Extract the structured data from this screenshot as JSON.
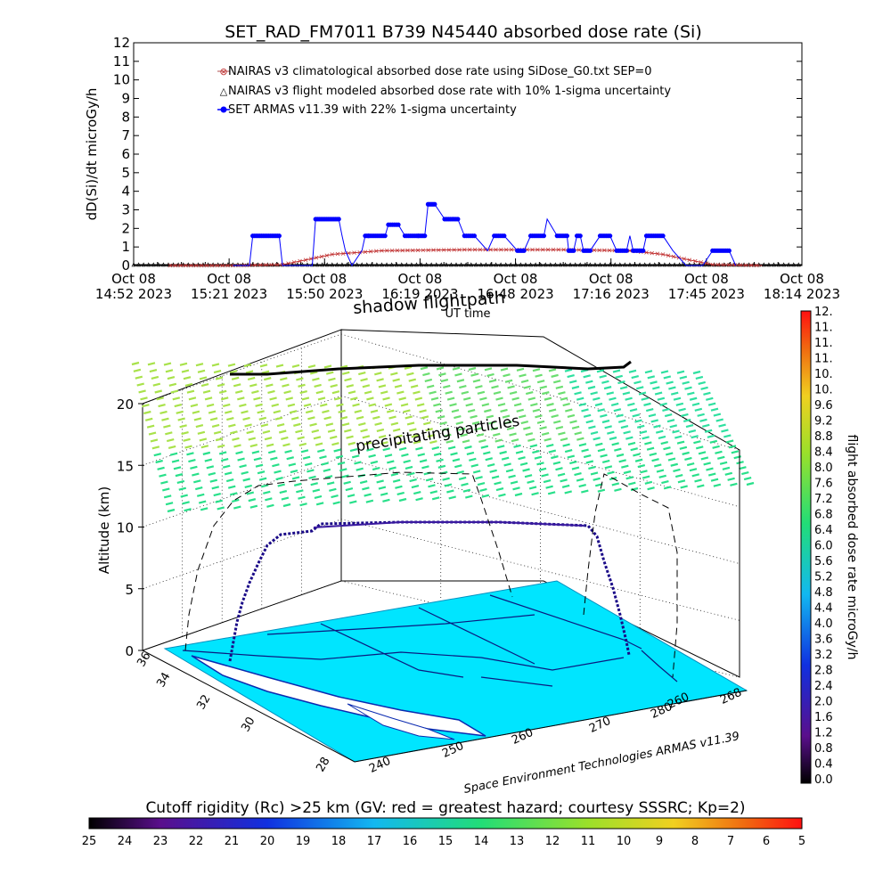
{
  "chart_data": [
    {
      "type": "line",
      "title": "SET_RAD_FM7011  B739 N45440 absorbed dose rate (Si)",
      "ylabel": "dD(Si)/dt microGy/h",
      "xlabel": "UT time",
      "ylim": [
        0,
        12
      ],
      "yticks": [
        "0",
        "1",
        "2",
        "3",
        "4",
        "5",
        "6",
        "7",
        "8",
        "9",
        "10",
        "11",
        "12"
      ],
      "xticks": [
        {
          "date": "Oct 08",
          "time": "14:52 2023"
        },
        {
          "date": "Oct 08",
          "time": "15:21 2023"
        },
        {
          "date": "Oct 08",
          "time": "15:50 2023"
        },
        {
          "date": "Oct 08",
          "time": "16:19 2023"
        },
        {
          "date": "Oct 08",
          "time": "16:48 2023"
        },
        {
          "date": "Oct 08",
          "time": "17:16 2023"
        },
        {
          "date": "Oct 08",
          "time": "17:45 2023"
        },
        {
          "date": "Oct 08",
          "time": "18:14 2023"
        }
      ],
      "xrange_min": [
        0,
        202
      ],
      "series": [
        {
          "name": "NAIRAS v3 climatological absorbed dose rate using SiDose_G0.txt SEP=0",
          "color": "#c03030",
          "x": [
            11,
            30,
            45,
            52,
            60,
            75,
            100,
            130,
            150,
            160,
            168,
            175,
            190
          ],
          "y": [
            0.0,
            0.0,
            0.05,
            0.3,
            0.6,
            0.8,
            0.85,
            0.85,
            0.8,
            0.6,
            0.3,
            0.05,
            0.0
          ]
        },
        {
          "name": "NAIRAS v3 flight modeled absorbed dose rate with 10% 1-sigma uncertainty",
          "color": "#000000",
          "x": [
            0,
            202
          ],
          "y": [
            0.0,
            0.0
          ]
        },
        {
          "name": "SET ARMAS v11.39 with 22% 1-sigma uncertainty",
          "color": "#0000ff",
          "x": [
            30,
            35,
            36,
            44,
            45,
            48,
            50,
            54,
            55,
            62,
            63,
            64,
            66,
            69,
            70,
            71,
            76,
            77,
            80,
            82,
            86,
            88,
            89,
            91,
            94,
            98,
            100,
            103,
            107,
            109,
            112,
            116,
            118,
            120,
            124,
            125,
            128,
            131,
            131.5,
            133,
            134,
            135,
            136,
            138,
            141,
            144,
            146,
            149,
            150,
            151,
            154,
            155,
            160,
            163,
            167,
            168,
            172,
            175,
            180,
            182
          ],
          "y": [
            0,
            0,
            1.6,
            1.6,
            0,
            0,
            0,
            0,
            2.5,
            2.5,
            1.6,
            0.8,
            0,
            0.8,
            1.6,
            1.6,
            1.6,
            2.2,
            2.2,
            1.6,
            1.6,
            1.6,
            3.3,
            3.3,
            2.5,
            2.5,
            1.6,
            1.6,
            0.8,
            1.6,
            1.6,
            0.8,
            0.8,
            1.6,
            1.6,
            2.5,
            1.6,
            1.6,
            0.8,
            0.8,
            1.6,
            1.6,
            0.8,
            0.8,
            1.6,
            1.6,
            0.8,
            0.8,
            1.6,
            0.8,
            0.8,
            1.6,
            1.6,
            0.8,
            0,
            0,
            0,
            0.8,
            0.8,
            0
          ]
        }
      ]
    },
    {
      "type": "3d-flight-track",
      "zlabel": "Altitude (km)",
      "zticks": [
        "0",
        "5",
        "10",
        "15",
        "20"
      ],
      "latitude_ticks": [
        "36",
        "34",
        "32",
        "30",
        "28"
      ],
      "longitude_ticks": [
        "240",
        "250",
        "260",
        "270",
        "280",
        "260",
        "268"
      ],
      "annotations": [
        "precipitating particles",
        "shadow flightpath"
      ],
      "credit": "Space Environment Technologies ARMAS v11.39"
    },
    {
      "type": "colorbar",
      "label": "flight absorbed dose rate microGy/h",
      "ticks": [
        "0.0",
        "0.4",
        "0.8",
        "1.2",
        "1.6",
        "2.0",
        "2.4",
        "2.8",
        "3.2",
        "3.6",
        "4.0",
        "4.4",
        "4.8",
        "5.2",
        "5.6",
        "6.0",
        "6.4",
        "6.8",
        "7.2",
        "7.6",
        "8.0",
        "8.4",
        "8.8",
        "9.2",
        "9.6",
        "10.",
        "10.",
        "11.",
        "11.",
        "11.",
        "12."
      ]
    },
    {
      "type": "colorbar",
      "label": "Cutoff rigidity (Rc) >25 km (GV: red = greatest hazard; courtesy SSSRC; Kp=2)",
      "ticks": [
        "25",
        "24",
        "23",
        "22",
        "21",
        "20",
        "19",
        "18",
        "17",
        "16",
        "15",
        "14",
        "13",
        "12",
        "11",
        "10",
        "9",
        "8",
        "7",
        "6",
        "5"
      ]
    }
  ]
}
